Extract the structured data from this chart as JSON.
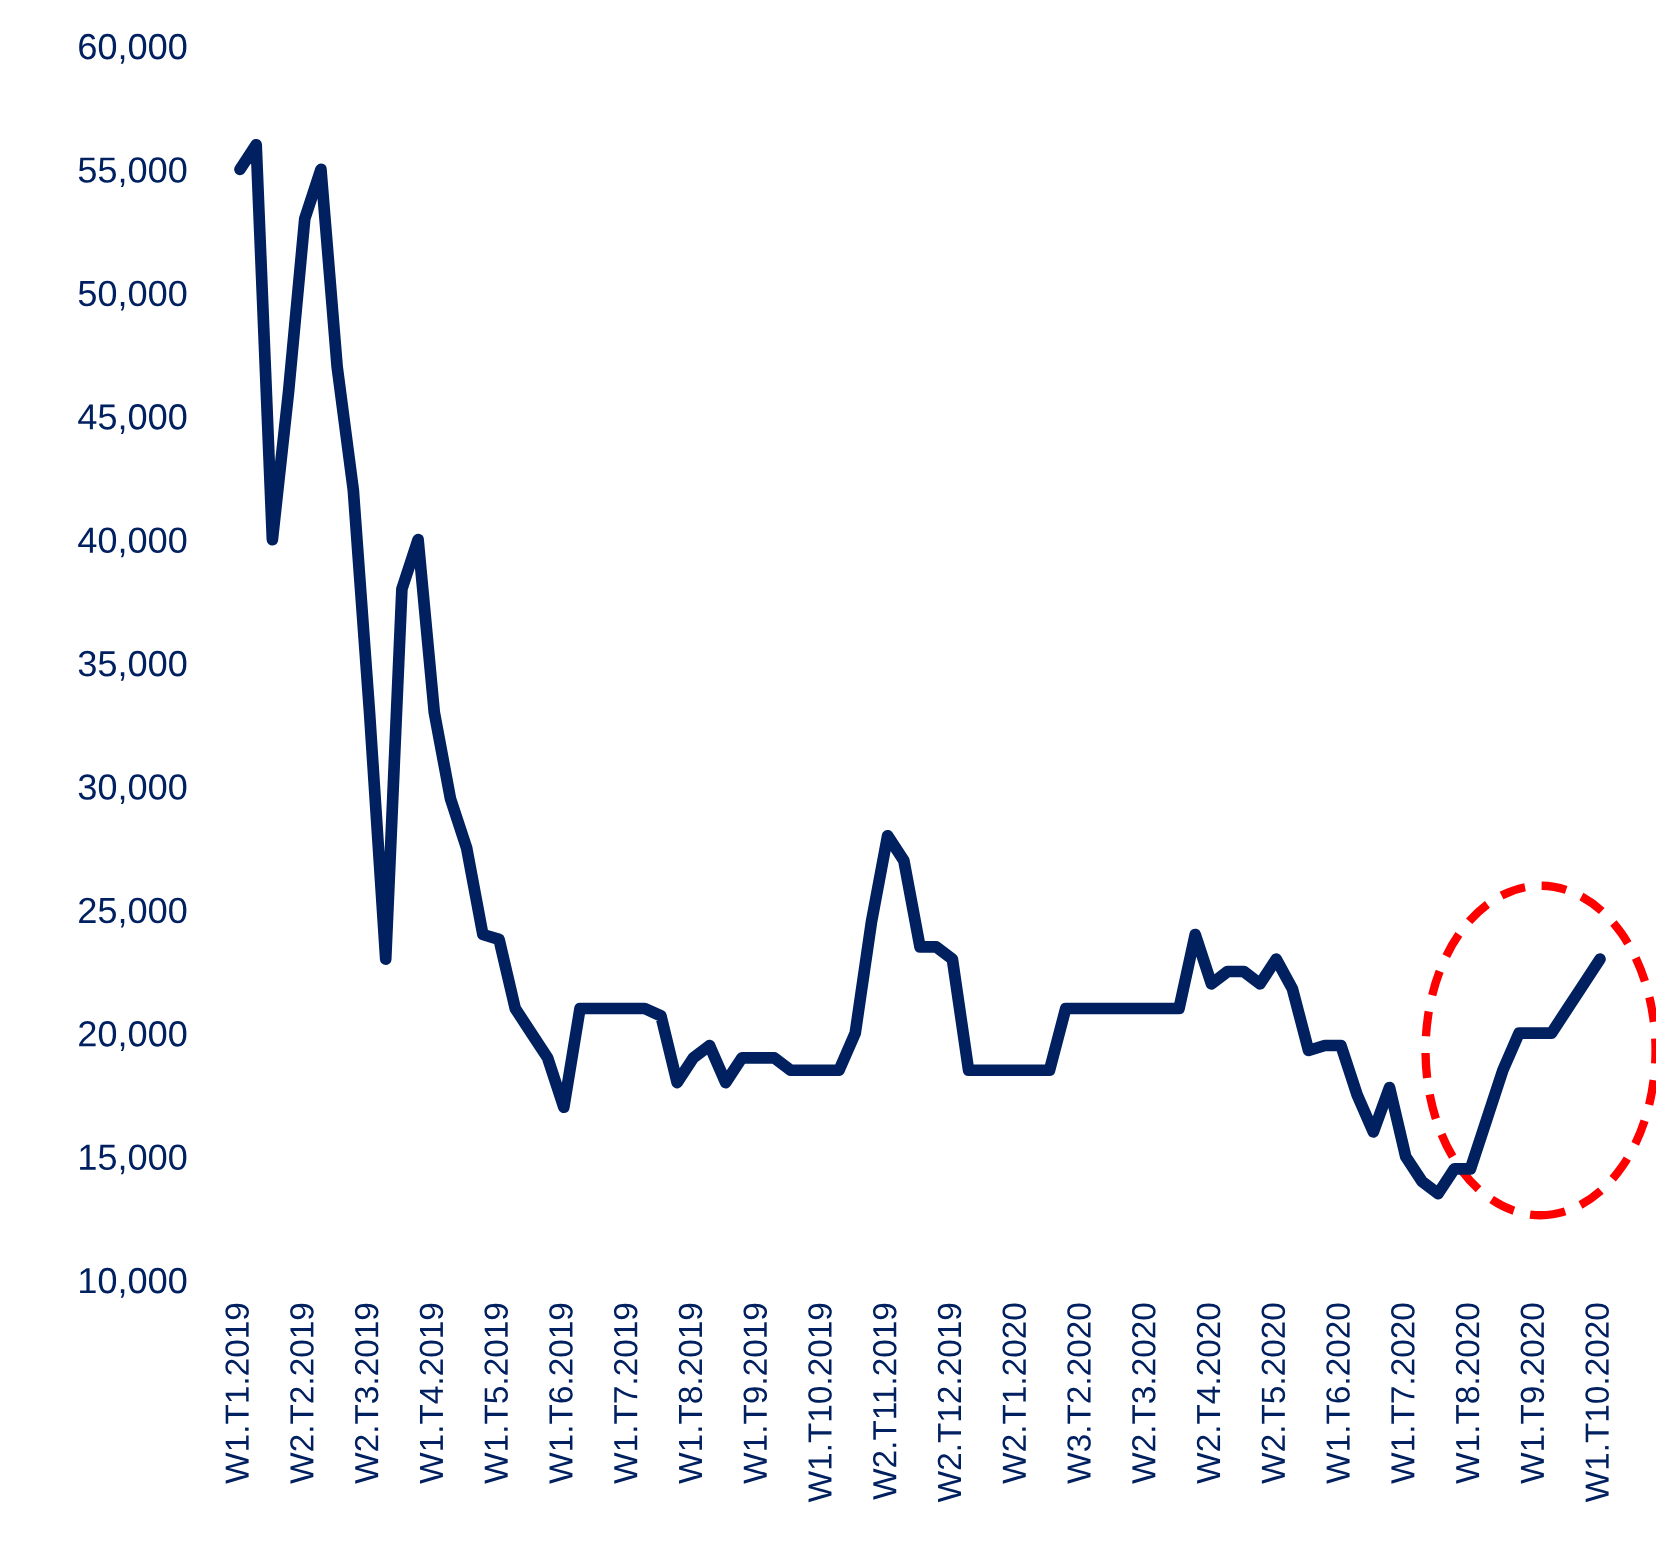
{
  "chart_data": {
    "type": "line",
    "categories": [
      "W1.T1.2019",
      null,
      null,
      null,
      "W2.T2.2019",
      null,
      null,
      null,
      "W2.T3.2019",
      null,
      null,
      null,
      "W1.T4.2019",
      null,
      null,
      null,
      "W1.T5.2019",
      null,
      null,
      null,
      "W1.T6.2019",
      null,
      null,
      null,
      "W1.T7.2019",
      null,
      null,
      null,
      "W1.T8.2019",
      null,
      null,
      null,
      "W1.T9.2019",
      null,
      null,
      null,
      "W1.T10.2019",
      null,
      null,
      null,
      "W2.T11.2019",
      null,
      null,
      null,
      "W2.T12.2019",
      null,
      null,
      null,
      "W2.T1.2020",
      null,
      null,
      null,
      "W3.T2.2020",
      null,
      null,
      null,
      "W2.T3.2020",
      null,
      null,
      null,
      "W2.T4.2020",
      null,
      null,
      null,
      "W2.T5.2020",
      null,
      null,
      null,
      "W1.T6.2020",
      null,
      null,
      null,
      "W1.T7.2020",
      null,
      null,
      null,
      "W1.T8.2020",
      null,
      null,
      null,
      "W1.T9.2020",
      null,
      null,
      null,
      "W1.T10.2020"
    ],
    "series": [
      {
        "color": "#002060",
        "values": [
          55000,
          56000,
          40000,
          46000,
          53000,
          55000,
          47000,
          42000,
          33000,
          23000,
          38000,
          40000,
          33000,
          29500,
          27500,
          24000,
          23800,
          21000,
          20000,
          19000,
          17000,
          21000,
          21000,
          21000,
          21000,
          21000,
          20700,
          18000,
          19000,
          19500,
          18000,
          19000,
          19000,
          19000,
          18500,
          18500,
          18500,
          18500,
          20000,
          24500,
          28000,
          27000,
          23500,
          23500,
          23000,
          18500,
          18500,
          18500,
          18500,
          18500,
          18500,
          21000,
          21000,
          21000,
          21000,
          21000,
          21000,
          21000,
          21000,
          24000,
          22000,
          22500,
          22500,
          22000,
          23000,
          21800,
          19300,
          19500,
          19500,
          17500,
          16000,
          17800,
          15000,
          14000,
          13500,
          14500,
          14500,
          16500,
          18500,
          20000,
          20000,
          20000,
          21000,
          22000,
          23000
        ]
      }
    ],
    "ylim": [
      10000,
      60000
    ],
    "yticks": [
      {
        "value": 10000,
        "label": "10,000"
      },
      {
        "value": 15000,
        "label": "15,000"
      },
      {
        "value": 20000,
        "label": "20,000"
      },
      {
        "value": 25000,
        "label": "25,000"
      },
      {
        "value": 30000,
        "label": "30,000"
      },
      {
        "value": 35000,
        "label": "35,000"
      },
      {
        "value": 40000,
        "label": "40,000"
      },
      {
        "value": 45000,
        "label": "45,000"
      },
      {
        "value": 50000,
        "label": "50,000"
      },
      {
        "value": 55000,
        "label": "55,000"
      },
      {
        "value": 60000,
        "label": "60,000"
      }
    ],
    "grid": false,
    "marker": "none",
    "line_style": "solid"
  }
}
